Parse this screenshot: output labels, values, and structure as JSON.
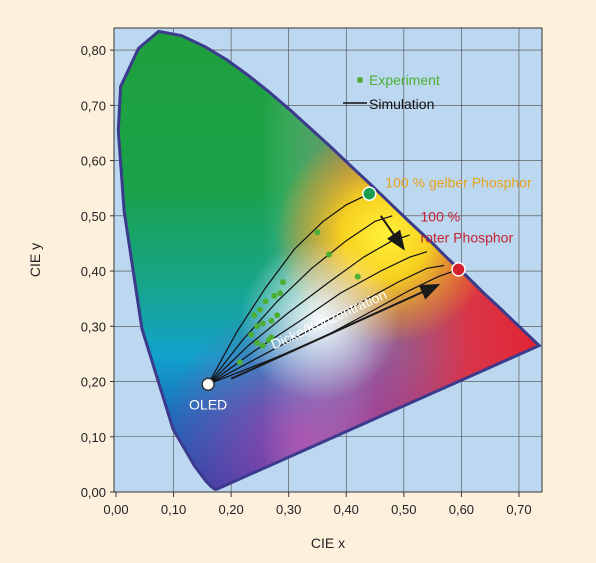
{
  "chart_data": {
    "type": "scatter",
    "xlabel": "CIE x",
    "ylabel": "CIE y",
    "xlim": [
      0.0,
      0.74
    ],
    "ylim": [
      0.0,
      0.84
    ],
    "x_ticks": [
      "0,00",
      "0,10",
      "0,20",
      "0,30",
      "0,40",
      "0,50",
      "0,60",
      "0,70"
    ],
    "y_ticks": [
      "0,00",
      "0,10",
      "0,20",
      "0,30",
      "0,40",
      "0,50",
      "0,60",
      "0,70",
      "0,80"
    ],
    "grid": true,
    "legend": {
      "position": "top-right",
      "entries": [
        {
          "label": "Experiment",
          "color": "#4caf33",
          "marker": "dot"
        },
        {
          "label": "Simulation",
          "color": "#111111",
          "marker": "line"
        }
      ]
    },
    "locus": {
      "x": [
        0.175,
        0.172,
        0.166,
        0.156,
        0.136,
        0.099,
        0.045,
        0.014,
        0.004,
        0.008,
        0.039,
        0.074,
        0.114,
        0.155,
        0.193,
        0.23,
        0.265,
        0.302,
        0.337,
        0.373,
        0.408,
        0.444,
        0.479,
        0.512,
        0.548,
        0.575,
        0.608,
        0.64,
        0.665,
        0.69,
        0.715,
        0.735,
        0.175
      ],
      "y": [
        0.005,
        0.005,
        0.009,
        0.02,
        0.048,
        0.114,
        0.296,
        0.509,
        0.654,
        0.734,
        0.803,
        0.834,
        0.826,
        0.806,
        0.782,
        0.754,
        0.725,
        0.692,
        0.659,
        0.625,
        0.59,
        0.555,
        0.52,
        0.487,
        0.452,
        0.424,
        0.392,
        0.359,
        0.335,
        0.31,
        0.285,
        0.265,
        0.005
      ]
    },
    "points": {
      "oled": {
        "label": "OLED",
        "x": 0.16,
        "y": 0.195,
        "color": "#ffffff"
      },
      "yellow": {
        "label": "100 % gelber Phosphor",
        "x": 0.44,
        "y": 0.54,
        "color": "#18a050",
        "label_color": "#e8a21c"
      },
      "red": {
        "label_line1": "100 %",
        "label_line2": "roter Phosphor",
        "x": 0.595,
        "y": 0.403,
        "color": "#d3202e",
        "label_color": "#c42032"
      }
    },
    "simulation_curves": [
      {
        "x": [
          0.16,
          0.21,
          0.26,
          0.31,
          0.36,
          0.4,
          0.44
        ],
        "y": [
          0.195,
          0.29,
          0.37,
          0.44,
          0.49,
          0.52,
          0.54
        ]
      },
      {
        "x": [
          0.16,
          0.22,
          0.28,
          0.34,
          0.4,
          0.45,
          0.48
        ],
        "y": [
          0.195,
          0.275,
          0.345,
          0.405,
          0.455,
          0.49,
          0.5
        ]
      },
      {
        "x": [
          0.16,
          0.23,
          0.3,
          0.37,
          0.43,
          0.48,
          0.51
        ],
        "y": [
          0.195,
          0.265,
          0.325,
          0.38,
          0.425,
          0.455,
          0.465
        ]
      },
      {
        "x": [
          0.16,
          0.24,
          0.32,
          0.39,
          0.46,
          0.51,
          0.54
        ],
        "y": [
          0.195,
          0.255,
          0.31,
          0.36,
          0.4,
          0.425,
          0.435
        ]
      },
      {
        "x": [
          0.16,
          0.25,
          0.34,
          0.42,
          0.49,
          0.54,
          0.57
        ],
        "y": [
          0.195,
          0.245,
          0.295,
          0.34,
          0.38,
          0.405,
          0.41
        ]
      },
      {
        "x": [
          0.16,
          0.27,
          0.36,
          0.44,
          0.51,
          0.56,
          0.595
        ],
        "y": [
          0.195,
          0.24,
          0.28,
          0.325,
          0.365,
          0.39,
          0.403
        ]
      }
    ],
    "experiment": {
      "x": [
        0.215,
        0.235,
        0.245,
        0.255,
        0.265,
        0.27,
        0.24,
        0.25,
        0.26,
        0.275,
        0.285,
        0.29,
        0.245,
        0.255,
        0.27,
        0.28,
        0.42,
        0.35,
        0.37
      ],
      "y": [
        0.235,
        0.285,
        0.27,
        0.265,
        0.275,
        0.28,
        0.32,
        0.33,
        0.345,
        0.355,
        0.36,
        0.38,
        0.3,
        0.305,
        0.31,
        0.32,
        0.39,
        0.47,
        0.43
      ]
    },
    "arrows": [
      {
        "from_x": 0.2,
        "from_y": 0.205,
        "to_x": 0.56,
        "to_y": 0.375,
        "label": "Dicke/Konzentration"
      },
      {
        "from_x": 0.46,
        "from_y": 0.5,
        "to_x": 0.5,
        "to_y": 0.44,
        "label": ""
      }
    ]
  }
}
